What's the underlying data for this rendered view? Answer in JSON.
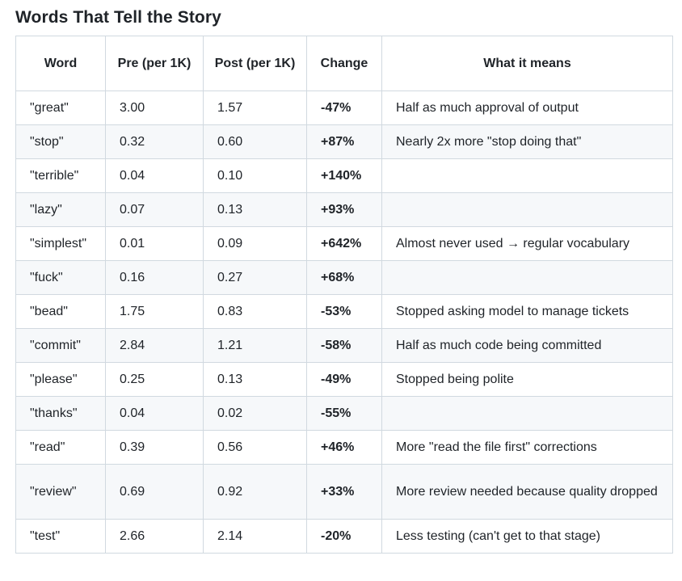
{
  "title": "Words That Tell the Story",
  "table": {
    "headers": [
      "Word",
      "Pre (per 1K)",
      "Post (per 1K)",
      "Change",
      "What it means"
    ],
    "rows": [
      {
        "word": "\"great\"",
        "pre": "3.00",
        "post": "1.57",
        "change": "-47%",
        "meaning": "Half as much approval of output"
      },
      {
        "word": "\"stop\"",
        "pre": "0.32",
        "post": "0.60",
        "change": "+87%",
        "meaning": "Nearly 2x more \"stop doing that\""
      },
      {
        "word": "\"terrible\"",
        "pre": "0.04",
        "post": "0.10",
        "change": "+140%",
        "meaning": ""
      },
      {
        "word": "\"lazy\"",
        "pre": "0.07",
        "post": "0.13",
        "change": "+93%",
        "meaning": ""
      },
      {
        "word": "\"simplest\"",
        "pre": "0.01",
        "post": "0.09",
        "change": "+642%",
        "meaning": "Almost never used → regular vocabulary"
      },
      {
        "word": "\"fuck\"",
        "pre": "0.16",
        "post": "0.27",
        "change": "+68%",
        "meaning": ""
      },
      {
        "word": "\"bead\"",
        "pre": "1.75",
        "post": "0.83",
        "change": "-53%",
        "meaning": "Stopped asking model to manage tickets"
      },
      {
        "word": "\"commit\"",
        "pre": "2.84",
        "post": "1.21",
        "change": "-58%",
        "meaning": "Half as much code being committed"
      },
      {
        "word": "\"please\"",
        "pre": "0.25",
        "post": "0.13",
        "change": "-49%",
        "meaning": "Stopped being polite"
      },
      {
        "word": "\"thanks\"",
        "pre": "0.04",
        "post": "0.02",
        "change": "-55%",
        "meaning": ""
      },
      {
        "word": "\"read\"",
        "pre": "0.39",
        "post": "0.56",
        "change": "+46%",
        "meaning": "More \"read the file first\" corrections"
      },
      {
        "word": "\"review\"",
        "pre": "0.69",
        "post": "0.92",
        "change": "+33%",
        "meaning": "More review needed because quality dropped"
      },
      {
        "word": "\"test\"",
        "pre": "2.66",
        "post": "2.14",
        "change": "-20%",
        "meaning": "Less testing (can't get to that stage)"
      }
    ]
  }
}
